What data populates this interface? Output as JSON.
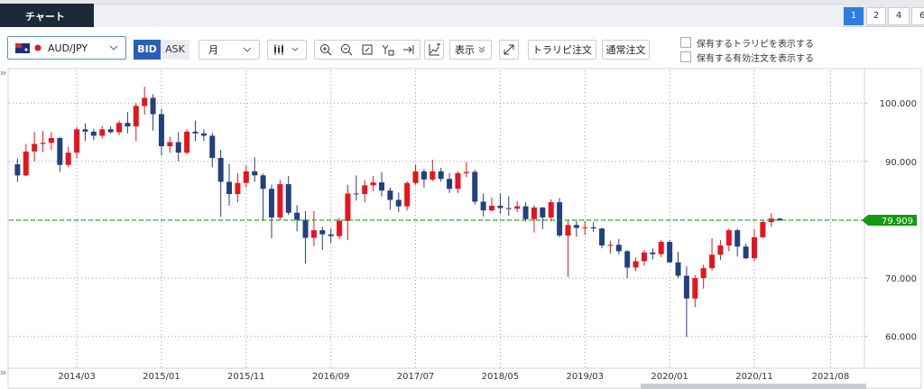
{
  "tabs": {
    "active": "チャート"
  },
  "pages": [
    "1",
    "2",
    "4",
    "6"
  ],
  "toolbar": {
    "pair": "AUD/JPY",
    "bid": "BID",
    "ask": "ASK",
    "period": "月",
    "display": "表示",
    "trarip_order": "トラリピ注文",
    "normal_order": "通常注文",
    "show_trarip": "保有するトラリピを表示する",
    "show_orders": "保有する有効注文を表示する"
  },
  "chart_data": {
    "type": "candlestick",
    "x": [
      "2013/08",
      "2013/09",
      "2013/10",
      "2013/11",
      "2013/12",
      "2014/01",
      "2014/02",
      "2014/03",
      "2014/04",
      "2014/05",
      "2014/06",
      "2014/07",
      "2014/08",
      "2014/09",
      "2014/10",
      "2014/11",
      "2014/12",
      "2015/01",
      "2015/02",
      "2015/03",
      "2015/04",
      "2015/05",
      "2015/06",
      "2015/07",
      "2015/08",
      "2015/09",
      "2015/10",
      "2015/11",
      "2015/12",
      "2016/01",
      "2016/02",
      "2016/03",
      "2016/04",
      "2016/05",
      "2016/06",
      "2016/07",
      "2016/08",
      "2016/09",
      "2016/10",
      "2016/11",
      "2016/12",
      "2017/01",
      "2017/02",
      "2017/03",
      "2017/04",
      "2017/05",
      "2017/06",
      "2017/07",
      "2017/08",
      "2017/09",
      "2017/10",
      "2017/11",
      "2017/12",
      "2018/01",
      "2018/02",
      "2018/03",
      "2018/04",
      "2018/05",
      "2018/06",
      "2018/07",
      "2018/08",
      "2018/09",
      "2018/10",
      "2018/11",
      "2018/12",
      "2019/01",
      "2019/02",
      "2019/03",
      "2019/04",
      "2019/05",
      "2019/06",
      "2019/07",
      "2019/08",
      "2019/09",
      "2019/10",
      "2019/11",
      "2019/12",
      "2020/01",
      "2020/02",
      "2020/03",
      "2020/04",
      "2020/05",
      "2020/06",
      "2020/07",
      "2020/08",
      "2020/09",
      "2020/10",
      "2020/11",
      "2020/12",
      "2021/01",
      "2021/02"
    ],
    "open": [
      89.5,
      87.6,
      91.7,
      93.0,
      93.2,
      94.0,
      89.4,
      91.5,
      95.5,
      95.1,
      94.4,
      95.5,
      95.0,
      96.6,
      96.0,
      99.5,
      100.9,
      98.1,
      92.6,
      93.3,
      91.5,
      95.1,
      94.8,
      94.4,
      90.6,
      86.5,
      84.4,
      86.3,
      88.3,
      87.6,
      85.3,
      80.4,
      86.1,
      81.2,
      80.0,
      76.9,
      78.2,
      77.5,
      77.2,
      79.8,
      84.5,
      84.4,
      85.9,
      86.4,
      85.0,
      83.4,
      82.3,
      86.3,
      88.3,
      86.9,
      88.3,
      87.0,
      85.3,
      88.0,
      88.2,
      83.1,
      81.6,
      82.4,
      82.0,
      81.9,
      82.3,
      80.1,
      82.1,
      80.4,
      83.0,
      77.3,
      79.1,
      78.6,
      78.7,
      78.5,
      75.6,
      75.7,
      74.6,
      71.8,
      72.9,
      74.4,
      74.1,
      76.2,
      72.7,
      70.4,
      66.5,
      70.0,
      71.7,
      74.0,
      75.6,
      78.2,
      75.4,
      73.4,
      77.0,
      79.6,
      80.2
    ],
    "high": [
      90.5,
      93.0,
      95.0,
      95.2,
      95.0,
      94.2,
      92.5,
      95.9,
      96.5,
      95.6,
      96.1,
      96.0,
      97.0,
      98.5,
      100.0,
      102.8,
      101.5,
      99.0,
      94.2,
      95.0,
      95.5,
      97.0,
      95.5,
      94.9,
      92.0,
      89.6,
      88.0,
      89.3,
      90.7,
      87.9,
      86.0,
      86.8,
      87.5,
      82.5,
      81.5,
      81.5,
      78.8,
      78.5,
      80.3,
      86.0,
      87.6,
      86.8,
      87.5,
      88.2,
      85.5,
      84.7,
      86.6,
      89.4,
      88.7,
      90.3,
      88.9,
      88.0,
      88.3,
      89.9,
      88.6,
      84.5,
      83.8,
      84.5,
      84.0,
      83.2,
      83.0,
      82.5,
      82.2,
      83.5,
      83.7,
      80.0,
      79.8,
      79.8,
      79.6,
      78.6,
      76.4,
      76.7,
      74.8,
      73.5,
      74.8,
      75.1,
      76.5,
      76.5,
      74.5,
      72.0,
      70.5,
      72.3,
      76.8,
      76.5,
      78.5,
      78.5,
      75.9,
      78.4,
      80.0,
      81.1,
      80.3
    ],
    "low": [
      86.5,
      87.5,
      90.0,
      91.6,
      92.0,
      88.2,
      89.0,
      90.5,
      93.5,
      93.6,
      93.9,
      94.8,
      94.5,
      94.8,
      93.5,
      98.0,
      95.3,
      91.0,
      91.5,
      90.0,
      91.2,
      93.5,
      93.5,
      89.0,
      80.5,
      82.4,
      83.0,
      85.5,
      86.5,
      80.0,
      76.8,
      80.0,
      80.8,
      78.0,
      72.5,
      75.5,
      74.8,
      76.0,
      76.7,
      76.5,
      83.3,
      83.0,
      84.9,
      84.0,
      81.7,
      81.3,
      81.6,
      86.0,
      85.5,
      86.6,
      86.5,
      84.6,
      84.6,
      87.3,
      82.6,
      80.5,
      81.4,
      81.0,
      80.7,
      81.3,
      79.7,
      77.8,
      78.4,
      79.7,
      77.0,
      70.2,
      77.1,
      77.4,
      77.9,
      75.1,
      74.2,
      74.1,
      70.0,
      71.2,
      72.1,
      73.2,
      73.6,
      72.6,
      70.0,
      59.9,
      65.0,
      68.2,
      71.3,
      73.1,
      74.6,
      73.7,
      73.2,
      72.9,
      76.9,
      78.8,
      79.8
    ],
    "close": [
      87.6,
      91.7,
      93.0,
      93.2,
      94.0,
      89.4,
      91.5,
      95.5,
      95.1,
      94.4,
      95.5,
      95.0,
      96.6,
      96.0,
      99.5,
      100.9,
      98.1,
      92.6,
      93.3,
      91.5,
      95.1,
      94.8,
      94.4,
      90.6,
      86.5,
      84.4,
      86.3,
      88.3,
      87.6,
      85.3,
      80.4,
      86.1,
      81.2,
      80.0,
      76.9,
      78.2,
      77.5,
      77.2,
      79.8,
      84.5,
      84.4,
      85.9,
      86.4,
      85.0,
      83.4,
      82.3,
      86.3,
      88.3,
      86.9,
      88.3,
      87.0,
      85.3,
      88.0,
      88.2,
      83.1,
      81.6,
      82.4,
      82.0,
      81.9,
      82.3,
      80.1,
      82.1,
      80.4,
      83.0,
      77.3,
      79.1,
      78.6,
      78.7,
      78.5,
      75.6,
      75.7,
      74.6,
      71.8,
      72.9,
      74.4,
      74.1,
      76.2,
      72.7,
      70.4,
      66.5,
      70.0,
      71.7,
      74.0,
      75.6,
      78.2,
      75.4,
      73.4,
      77.0,
      79.6,
      80.2,
      79.9
    ],
    "up_color": "#e8141c",
    "down_color": "#23407f",
    "xlim": [
      "2013/07",
      "2021/12"
    ],
    "xticks": [
      "2014/03",
      "2015/01",
      "2015/11",
      "2016/09",
      "2017/07",
      "2018/05",
      "2019/03",
      "2020/01",
      "2020/11",
      "2021/08"
    ],
    "ylim": [
      54.7,
      105.6
    ],
    "yticks": [
      {
        "value": 60,
        "label": "60.000"
      },
      {
        "value": 70,
        "label": "70.000"
      },
      {
        "value": 80,
        "label": "80.000"
      },
      {
        "value": 90,
        "label": "90.000"
      },
      {
        "value": 100,
        "label": "100.000"
      }
    ],
    "grid": true,
    "current_price": 79.909,
    "current_color": "#119b11"
  }
}
